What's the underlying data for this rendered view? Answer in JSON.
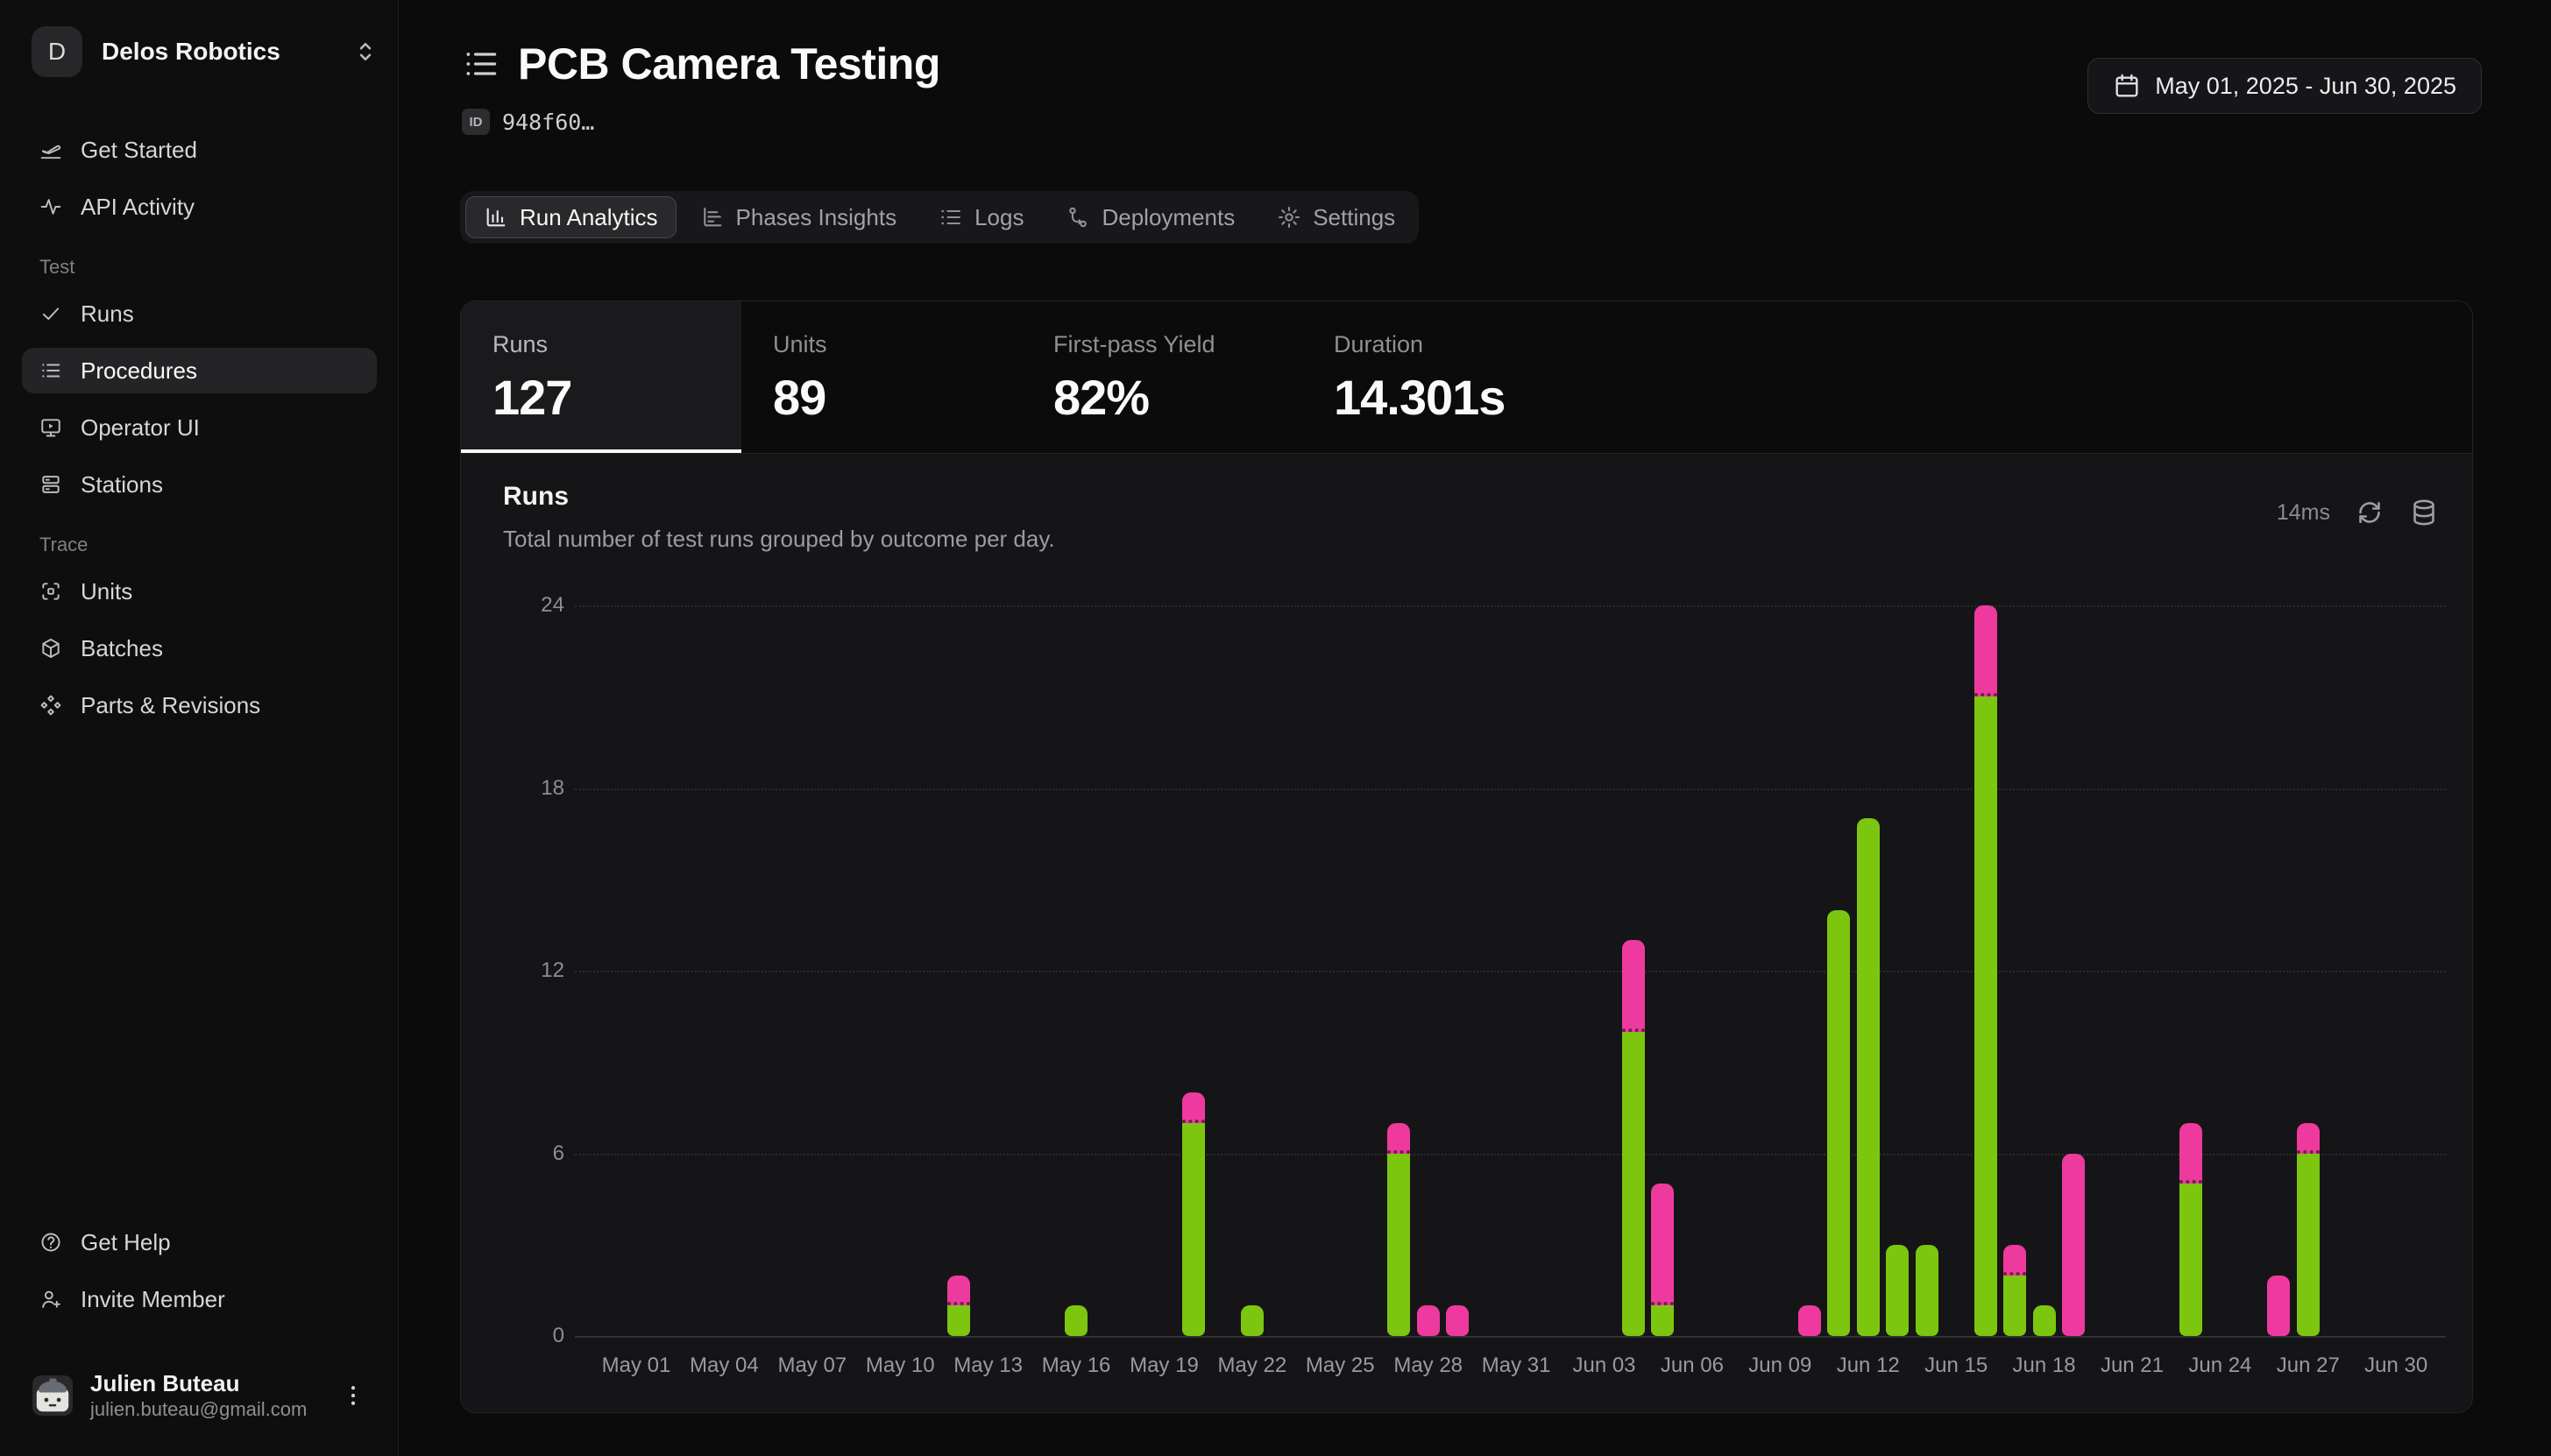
{
  "sidebar": {
    "org": {
      "initial": "D",
      "name": "Delos Robotics"
    },
    "sections": [
      {
        "label": "",
        "items": [
          {
            "label": "Get Started",
            "icon": "plane-departure-icon",
            "active": false
          },
          {
            "label": "API Activity",
            "icon": "activity-icon",
            "active": false
          }
        ]
      },
      {
        "label": "Test",
        "items": [
          {
            "label": "Runs",
            "icon": "check-icon",
            "active": false
          },
          {
            "label": "Procedures",
            "icon": "list-icon",
            "active": true
          },
          {
            "label": "Operator UI",
            "icon": "monitor-play-icon",
            "active": false
          },
          {
            "label": "Stations",
            "icon": "server-icon",
            "active": false
          }
        ]
      },
      {
        "label": "Trace",
        "items": [
          {
            "label": "Units",
            "icon": "scan-icon",
            "active": false
          },
          {
            "label": "Batches",
            "icon": "box-icon",
            "active": false
          },
          {
            "label": "Parts & Revisions",
            "icon": "shapes-icon",
            "active": false
          }
        ]
      }
    ],
    "footer_items": [
      {
        "label": "Get Help",
        "icon": "help-circle-icon"
      },
      {
        "label": "Invite Member",
        "icon": "user-plus-icon"
      }
    ],
    "user": {
      "name": "Julien Buteau",
      "email": "julien.buteau@gmail.com"
    }
  },
  "header": {
    "title": "PCB Camera Testing",
    "id_badge": "ID",
    "id_value": "948f60…",
    "date_range": "May 01, 2025 - Jun 30, 2025"
  },
  "tabs": [
    {
      "label": "Run Analytics",
      "icon": "chart-column-icon",
      "active": true
    },
    {
      "label": "Phases Insights",
      "icon": "chart-bar-icon",
      "active": false
    },
    {
      "label": "Logs",
      "icon": "rows-icon",
      "active": false
    },
    {
      "label": "Deployments",
      "icon": "git-branch-icon",
      "active": false
    },
    {
      "label": "Settings",
      "icon": "gear-icon",
      "active": false
    }
  ],
  "stats": [
    {
      "label": "Runs",
      "value": "127",
      "active": true
    },
    {
      "label": "Units",
      "value": "89",
      "active": false
    },
    {
      "label": "First-pass Yield",
      "value": "82%",
      "active": false
    },
    {
      "label": "Duration",
      "value": "14.301s",
      "active": false
    }
  ],
  "chart": {
    "title": "Runs",
    "subtitle": "Total number of test runs grouped by outcome per day.",
    "latency": "14ms"
  },
  "chart_data": {
    "type": "bar",
    "stacked": true,
    "title": "Runs",
    "xlabel": "",
    "ylabel": "",
    "ylim": [
      0,
      24
    ],
    "y_ticks": [
      0,
      6,
      12,
      18,
      24
    ],
    "grid": true,
    "legend": false,
    "colors": {
      "pass": "#7cc60f",
      "fail": "#ee3a9e"
    },
    "x_ticks": [
      {
        "label": "May 01",
        "day": 0
      },
      {
        "label": "May 04",
        "day": 3
      },
      {
        "label": "May 07",
        "day": 6
      },
      {
        "label": "May 10",
        "day": 9
      },
      {
        "label": "May 13",
        "day": 12
      },
      {
        "label": "May 16",
        "day": 15
      },
      {
        "label": "May 19",
        "day": 18
      },
      {
        "label": "May 22",
        "day": 21
      },
      {
        "label": "May 25",
        "day": 24
      },
      {
        "label": "May 28",
        "day": 27
      },
      {
        "label": "May 31",
        "day": 30
      },
      {
        "label": "Jun 03",
        "day": 33
      },
      {
        "label": "Jun 06",
        "day": 36
      },
      {
        "label": "Jun 09",
        "day": 39
      },
      {
        "label": "Jun 12",
        "day": 42
      },
      {
        "label": "Jun 15",
        "day": 45
      },
      {
        "label": "Jun 18",
        "day": 48
      },
      {
        "label": "Jun 21",
        "day": 51
      },
      {
        "label": "Jun 24",
        "day": 54
      },
      {
        "label": "Jun 27",
        "day": 57
      },
      {
        "label": "Jun 30",
        "day": 60
      }
    ],
    "bars": [
      {
        "date": "May 12",
        "day": 11,
        "pass": 1,
        "fail": 1
      },
      {
        "date": "May 16",
        "day": 15,
        "pass": 1,
        "fail": 0
      },
      {
        "date": "May 20",
        "day": 19,
        "pass": 7,
        "fail": 1
      },
      {
        "date": "May 22",
        "day": 21,
        "pass": 1,
        "fail": 0
      },
      {
        "date": "May 27",
        "day": 26,
        "pass": 6,
        "fail": 1
      },
      {
        "date": "May 28",
        "day": 27,
        "pass": 0,
        "fail": 1
      },
      {
        "date": "May 29",
        "day": 28,
        "pass": 0,
        "fail": 1
      },
      {
        "date": "Jun 04",
        "day": 34,
        "pass": 10,
        "fail": 3
      },
      {
        "date": "Jun 05",
        "day": 35,
        "pass": 1,
        "fail": 4
      },
      {
        "date": "Jun 10",
        "day": 40,
        "pass": 0,
        "fail": 1
      },
      {
        "date": "Jun 11",
        "day": 41,
        "pass": 14,
        "fail": 0
      },
      {
        "date": "Jun 12",
        "day": 42,
        "pass": 17,
        "fail": 0
      },
      {
        "date": "Jun 13",
        "day": 43,
        "pass": 3,
        "fail": 0
      },
      {
        "date": "Jun 14",
        "day": 44,
        "pass": 3,
        "fail": 0
      },
      {
        "date": "Jun 16",
        "day": 46,
        "pass": 21,
        "fail": 3
      },
      {
        "date": "Jun 17",
        "day": 47,
        "pass": 2,
        "fail": 1
      },
      {
        "date": "Jun 18",
        "day": 48,
        "pass": 1,
        "fail": 0
      },
      {
        "date": "Jun 19",
        "day": 49,
        "pass": 0,
        "fail": 6
      },
      {
        "date": "Jun 23",
        "day": 53,
        "pass": 5,
        "fail": 2
      },
      {
        "date": "Jun 26",
        "day": 56,
        "pass": 0,
        "fail": 2
      },
      {
        "date": "Jun 27",
        "day": 57,
        "pass": 6,
        "fail": 1
      }
    ]
  }
}
